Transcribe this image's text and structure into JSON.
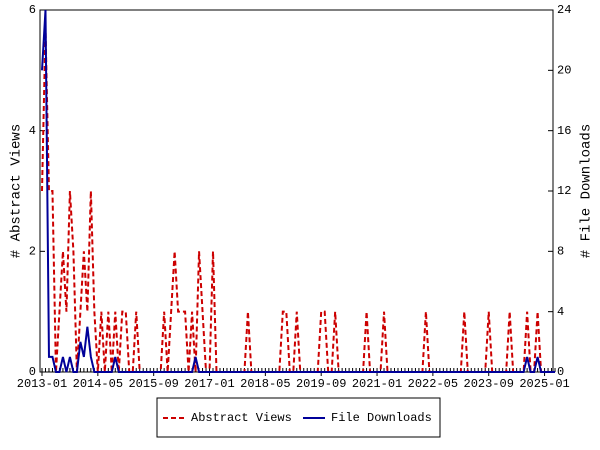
{
  "chart_data": {
    "type": "line",
    "x": [
      "2013-01",
      "2013-02",
      "2013-03",
      "2013-04",
      "2013-05",
      "2013-06",
      "2013-07",
      "2013-08",
      "2013-09",
      "2013-10",
      "2013-11",
      "2013-12",
      "2014-01",
      "2014-02",
      "2014-03",
      "2014-04",
      "2014-05",
      "2014-06",
      "2014-07",
      "2014-08",
      "2014-09",
      "2014-10",
      "2014-11",
      "2014-12",
      "2015-01",
      "2015-02",
      "2015-03",
      "2015-04",
      "2015-05",
      "2015-06",
      "2015-07",
      "2015-08",
      "2015-09",
      "2015-10",
      "2015-11",
      "2015-12",
      "2016-01",
      "2016-02",
      "2016-03",
      "2016-04",
      "2016-05",
      "2016-06",
      "2016-07",
      "2016-08",
      "2016-09",
      "2016-10",
      "2016-11",
      "2016-12",
      "2017-01",
      "2017-02",
      "2017-03",
      "2017-04",
      "2017-05",
      "2017-06",
      "2017-07",
      "2017-08",
      "2017-09",
      "2017-10",
      "2017-11",
      "2017-12",
      "2018-01",
      "2018-02",
      "2018-03",
      "2018-04",
      "2018-05",
      "2018-06",
      "2018-07",
      "2018-08",
      "2018-09",
      "2018-10",
      "2018-11",
      "2018-12",
      "2019-01",
      "2019-02",
      "2019-03",
      "2019-04",
      "2019-05",
      "2019-06",
      "2019-07",
      "2019-08",
      "2019-09",
      "2019-10",
      "2019-11",
      "2019-12",
      "2020-01",
      "2020-02",
      "2020-03",
      "2020-04",
      "2020-05",
      "2020-06",
      "2020-07",
      "2020-08",
      "2020-09",
      "2020-10",
      "2020-11",
      "2020-12",
      "2021-01",
      "2021-02",
      "2021-03",
      "2021-04",
      "2021-05",
      "2021-06",
      "2021-07",
      "2021-08",
      "2021-09",
      "2021-10",
      "2021-11",
      "2021-12",
      "2022-01",
      "2022-02",
      "2022-03",
      "2022-04",
      "2022-05",
      "2022-06",
      "2022-07",
      "2022-08",
      "2022-09",
      "2022-10",
      "2022-11",
      "2022-12",
      "2023-01",
      "2023-02",
      "2023-03",
      "2023-04",
      "2023-05",
      "2023-06",
      "2023-07",
      "2023-08",
      "2023-09",
      "2023-10",
      "2023-11",
      "2023-12",
      "2024-01",
      "2024-02",
      "2024-03",
      "2024-04",
      "2024-05",
      "2024-06",
      "2024-07",
      "2024-08",
      "2024-09",
      "2024-10",
      "2024-11",
      "2024-12",
      "2025-01",
      "2025-02",
      "2025-03",
      "2025-04"
    ],
    "xticks": [
      "2013-01",
      "2014-05",
      "2015-09",
      "2017-01",
      "2018-05",
      "2019-09",
      "2021-01",
      "2022-05",
      "2023-09",
      "2025-01"
    ],
    "ylabel": "# Abstract Views",
    "y2label": "# File Downloads",
    "ylim": [
      0,
      6
    ],
    "yticks": [
      0,
      2,
      4,
      6
    ],
    "y2lim": [
      0,
      24
    ],
    "y2ticks": [
      0,
      4,
      8,
      12,
      16,
      20,
      24
    ],
    "series": [
      {
        "name": "Abstract Views",
        "color": "#cc0000",
        "dashed": true,
        "values": [
          3,
          5.7,
          3,
          3,
          0,
          1,
          2,
          1,
          3,
          2,
          0,
          1,
          2,
          1,
          3,
          1,
          0,
          1,
          0,
          1,
          0,
          1,
          0,
          1,
          1,
          0,
          0,
          1,
          0,
          0,
          0,
          0,
          0,
          0,
          0,
          1,
          0,
          1,
          2,
          1,
          1,
          1,
          0,
          1,
          0,
          2,
          1,
          0,
          0,
          2,
          0,
          0,
          0,
          0,
          0,
          0,
          0,
          0,
          0,
          1,
          0,
          0,
          0,
          0,
          0,
          0,
          0,
          0,
          0,
          1,
          1,
          0,
          0,
          1,
          0,
          0,
          0,
          0,
          0,
          0,
          1,
          1,
          0,
          0,
          1,
          0,
          0,
          0,
          0,
          0,
          0,
          0,
          0,
          1,
          0,
          0,
          0,
          0,
          1,
          0,
          0,
          0,
          0,
          0,
          0,
          0,
          0,
          0,
          0,
          0,
          1,
          0,
          0,
          0,
          0,
          0,
          0,
          0,
          0,
          0,
          0,
          1,
          0,
          0,
          0,
          0,
          0,
          0,
          1,
          0,
          0,
          0,
          0,
          0,
          1,
          0,
          0,
          0,
          0,
          1,
          0,
          0,
          1,
          0,
          0,
          0,
          0,
          0
        ]
      },
      {
        "name": "File Downloads",
        "color": "#000099",
        "dashed": false,
        "axis": "y2",
        "values": [
          20,
          24,
          1,
          1,
          0,
          0,
          1,
          0,
          1,
          0,
          0,
          2,
          1,
          3,
          1,
          0,
          0,
          0,
          0,
          0,
          0,
          1,
          0,
          0,
          0,
          0,
          0,
          0,
          0,
          0,
          0,
          0,
          0,
          0,
          0,
          0,
          0,
          0,
          0,
          0,
          0,
          0,
          0,
          0,
          1,
          0,
          0,
          0,
          0,
          0,
          0,
          0,
          0,
          0,
          0,
          0,
          0,
          0,
          0,
          0,
          0,
          0,
          0,
          0,
          0,
          0,
          0,
          0,
          0,
          0,
          0,
          0,
          0,
          0,
          0,
          0,
          0,
          0,
          0,
          0,
          0,
          0,
          0,
          0,
          0,
          0,
          0,
          0,
          0,
          0,
          0,
          0,
          0,
          0,
          0,
          0,
          0,
          0,
          0,
          0,
          0,
          0,
          0,
          0,
          0,
          0,
          0,
          0,
          0,
          0,
          0,
          0,
          0,
          0,
          0,
          0,
          0,
          0,
          0,
          0,
          0,
          0,
          0,
          0,
          0,
          0,
          0,
          0,
          0,
          0,
          0,
          0,
          0,
          0,
          0,
          0,
          0,
          0,
          0,
          1,
          0,
          0,
          1,
          0,
          0,
          0,
          0,
          0
        ]
      }
    ]
  }
}
